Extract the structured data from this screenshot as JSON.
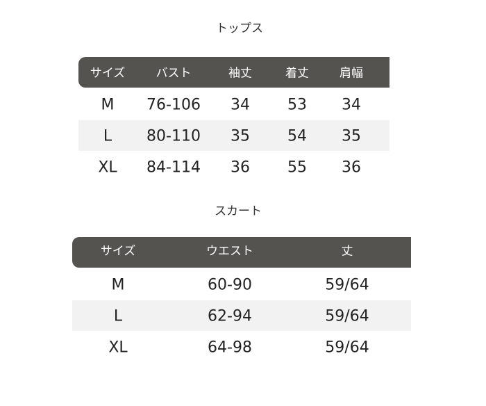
{
  "tops": {
    "title": "トップス",
    "headers": [
      "サイズ",
      "バスト",
      "袖丈",
      "着丈",
      "肩幅"
    ],
    "rows": [
      [
        "M",
        "76-106",
        "34",
        "53",
        "34"
      ],
      [
        "L",
        "80-110",
        "35",
        "54",
        "35"
      ],
      [
        "XL",
        "84-114",
        "36",
        "55",
        "36"
      ]
    ]
  },
  "skirt": {
    "title": "スカート",
    "headers": [
      "サイズ",
      "ウエスト",
      "丈"
    ],
    "rows": [
      [
        "M",
        "60-90",
        "59/64"
      ],
      [
        "L",
        "62-94",
        "59/64"
      ],
      [
        "XL",
        "64-98",
        "59/64"
      ]
    ]
  },
  "colors": {
    "header_bg": "#555350",
    "stripe_bg": "#f2f2f2"
  }
}
